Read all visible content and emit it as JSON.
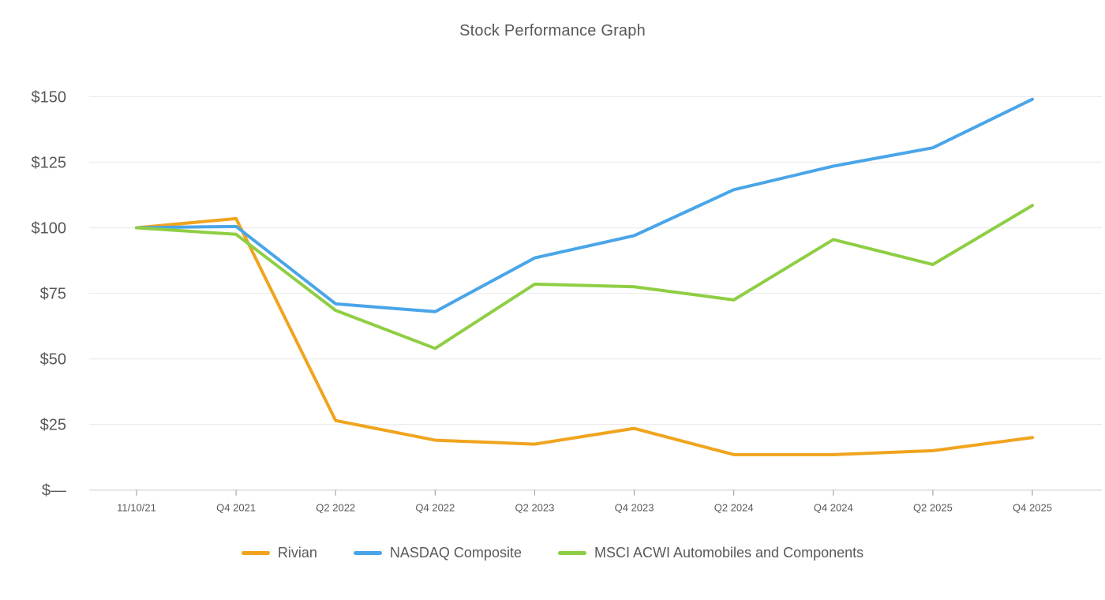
{
  "chart_data": {
    "type": "line",
    "title": "Stock Performance Graph",
    "categories": [
      "11/10/21",
      "Q4 2021",
      "Q2 2022",
      "Q4 2022",
      "Q2 2023",
      "Q4 2023",
      "Q2 2024",
      "Q4 2024",
      "Q2 2025",
      "Q4 2025"
    ],
    "series": [
      {
        "name": "Rivian",
        "color": "#F0A41E",
        "values": [
          100,
          103.5,
          26.5,
          19,
          17.5,
          23.5,
          13.5,
          13.5,
          15,
          20
        ]
      },
      {
        "name": "NASDAQ Composite",
        "color": "#4AA5E8",
        "values": [
          100,
          100.5,
          71,
          68,
          88.5,
          97,
          114.5,
          123.5,
          130.5,
          149
        ]
      },
      {
        "name": "MSCI ACWI Automobiles and Components",
        "color": "#8FCE44",
        "values": [
          100,
          97.5,
          68.5,
          54,
          78.5,
          77.5,
          72.5,
          95.5,
          86,
          108.5
        ]
      }
    ],
    "y_ticks": [
      {
        "value": 0,
        "label": "$—"
      },
      {
        "value": 25,
        "label": "$25"
      },
      {
        "value": 50,
        "label": "$50"
      },
      {
        "value": 75,
        "label": "$75"
      },
      {
        "value": 100,
        "label": "$100"
      },
      {
        "value": 125,
        "label": "$125"
      },
      {
        "value": 150,
        "label": "$150"
      }
    ],
    "ylim": [
      0,
      162
    ],
    "grid": true,
    "legend_position": "bottom"
  },
  "colors": {
    "grid": "#ECECEC",
    "axis_line": "#DCDCDC",
    "tick_mark": "#A6A6A6",
    "text": "#595959"
  }
}
